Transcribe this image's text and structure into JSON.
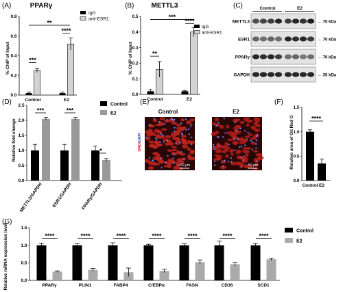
{
  "chart_data": [
    {
      "panel": "(A)",
      "type": "bar",
      "title": "PPARγ",
      "ylabel": "% ChIP of Input",
      "categories": [
        "Control",
        "E2"
      ],
      "ylim": [
        0,
        0.8
      ],
      "yticks": [
        "0.0",
        "0.2",
        "0.4",
        "0.6",
        "0.8"
      ],
      "series": [
        {
          "name": "IgG",
          "values": [
            0.02,
            0.02
          ],
          "errors": [
            0.01,
            0.01
          ],
          "color": "#000000"
        },
        {
          "name": "anti-ESR1",
          "values": [
            0.25,
            0.52
          ],
          "errors": [
            0.02,
            0.06
          ],
          "color": "#d3d3d3"
        }
      ],
      "significance": [
        "***",
        "**",
        "****"
      ]
    },
    {
      "panel": "(B)",
      "type": "bar",
      "title": "METTL3",
      "ylabel": "% ChIP of Input",
      "categories": [
        "Control",
        "E2"
      ],
      "ylim": [
        0,
        0.5
      ],
      "yticks": [
        "0.0",
        "0.1",
        "0.2",
        "0.3",
        "0.4",
        "0.5"
      ],
      "series": [
        {
          "name": "IgG",
          "values": [
            0.02,
            0.02
          ],
          "errors": [
            0.01,
            0.005
          ],
          "color": "#000000"
        },
        {
          "name": "anti-ESR1",
          "values": [
            0.16,
            0.4
          ],
          "errors": [
            0.05,
            0.03
          ],
          "color": "#d3d3d3"
        }
      ],
      "significance": [
        "**",
        "***",
        "****"
      ]
    },
    {
      "panel": "(D)",
      "type": "bar",
      "ylabel": "Relative fold change",
      "categories": [
        "METTL3/GAPDH",
        "ESR1/GAPDH",
        "PPARγ/GAPDH"
      ],
      "ylim": [
        0,
        2.5
      ],
      "yticks": [
        "0.0",
        "0.5",
        "1.0",
        "1.5",
        "2.0",
        "2.5"
      ],
      "series": [
        {
          "name": "Control",
          "values": [
            1.0,
            1.0,
            1.0
          ],
          "errors": [
            0.2,
            0.2,
            0.15
          ],
          "color": "#000000"
        },
        {
          "name": "E2",
          "values": [
            2.05,
            2.05,
            0.68
          ],
          "errors": [
            0.05,
            0.05,
            0.05
          ],
          "color": "#999999"
        }
      ],
      "significance": [
        "***",
        "***",
        "*"
      ]
    },
    {
      "panel": "(F)",
      "type": "bar",
      "ylabel": "Relative area of Oil Red O",
      "categories": [
        "Control",
        "E2"
      ],
      "ylim": [
        0,
        1.5
      ],
      "yticks": [
        "0.0",
        "0.5",
        "1.0",
        "1.5"
      ],
      "series": [
        {
          "values": [
            1.0,
            0.35
          ],
          "errors": [
            0.04,
            0.09
          ],
          "color": "#000000"
        }
      ],
      "significance": [
        "****"
      ]
    },
    {
      "panel": "(G)",
      "type": "bar",
      "ylabel": "Relative mRNA expression level",
      "categories": [
        "PPARγ",
        "PLIN1",
        "FABP4",
        "C/EBPα",
        "FASN",
        "CD36",
        "SCD1"
      ],
      "ylim": [
        0,
        1.5
      ],
      "yticks": [
        "0.0",
        "0.5",
        "1.0",
        "1.5"
      ],
      "series": [
        {
          "name": "Control",
          "values": [
            1.0,
            1.0,
            1.0,
            1.0,
            1.0,
            1.0,
            1.0
          ],
          "errors": [
            0.06,
            0.04,
            0.07,
            0.03,
            0.04,
            0.12,
            0.05
          ],
          "color": "#000000"
        },
        {
          "name": "E2",
          "values": [
            0.25,
            0.3,
            0.23,
            0.27,
            0.52,
            0.46,
            0.6
          ],
          "errors": [
            0.02,
            0.04,
            0.12,
            0.05,
            0.06,
            0.05,
            0.03
          ],
          "color": "#aaaaaa"
        }
      ],
      "significance": [
        "****",
        "****",
        "****",
        "****",
        "****",
        "****",
        "****"
      ]
    }
  ],
  "blot": {
    "panel": "(C)",
    "groups": [
      "Control",
      "E2"
    ],
    "rows": [
      {
        "name": "METTL3",
        "size": "← 70 kDa"
      },
      {
        "name": "ESR1",
        "size": "← 70 kDa"
      },
      {
        "name": "PPARγ",
        "size": "← 70 kDa"
      },
      {
        "name": "GAPDH",
        "size": "← 35 kDa"
      }
    ]
  },
  "micrograph": {
    "panel": "(E)",
    "titles": [
      "Control",
      "E2"
    ],
    "stain_label": "ORO/DAPI",
    "scale_label": "50 μm"
  }
}
